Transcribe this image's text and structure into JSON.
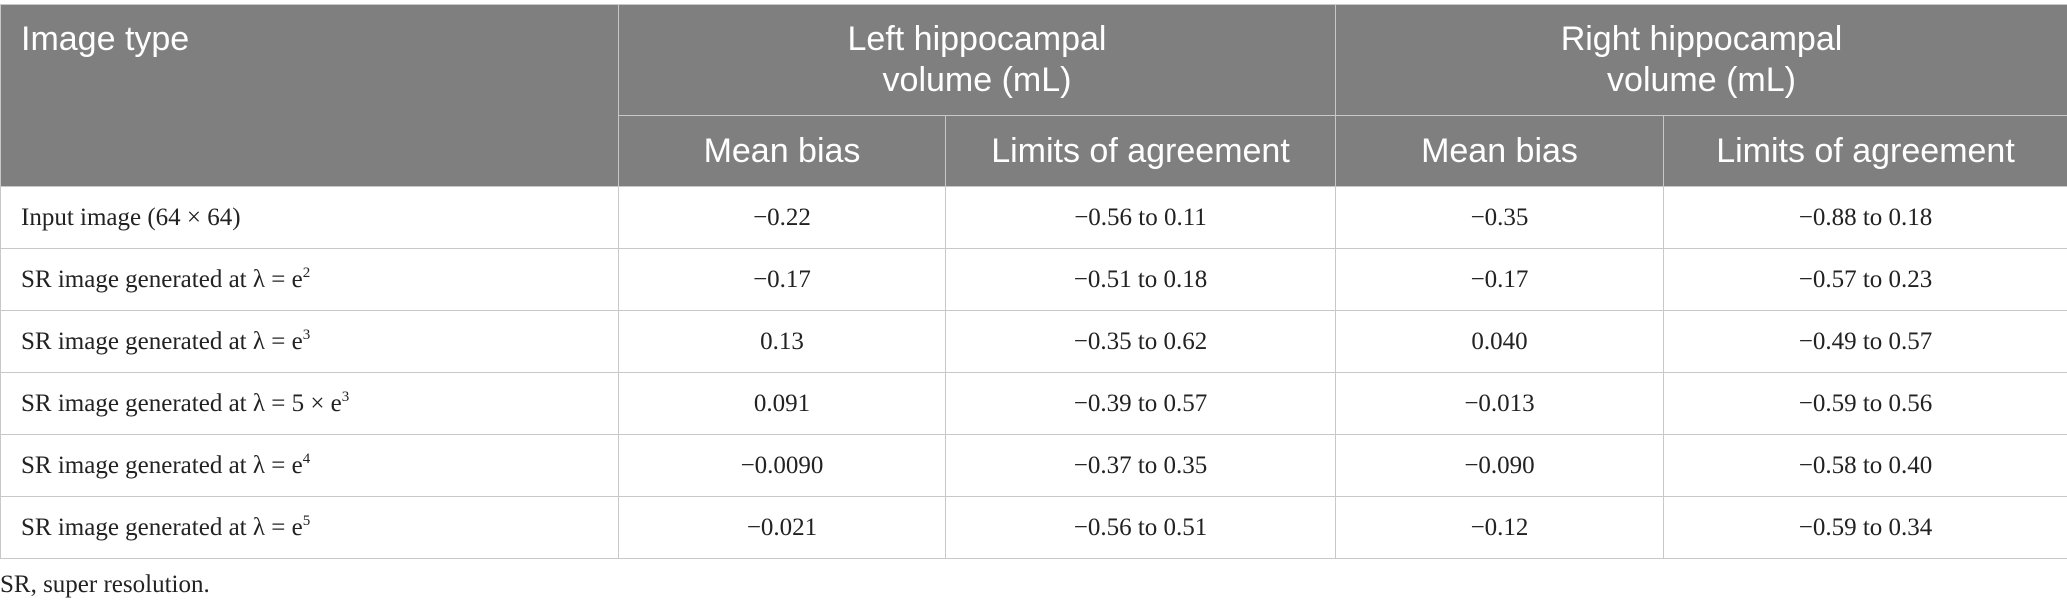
{
  "table": {
    "header": {
      "first": "Image type",
      "groups": [
        "Left hippocampal volume (mL)",
        "Right hippocampal volume (mL)"
      ],
      "subheaders": [
        "Mean bias",
        "Limits of agreement",
        "Mean bias",
        "Limits of agreement"
      ]
    },
    "rows": [
      {
        "label": {
          "text": "Input image (64 × 64)"
        },
        "cells": [
          "−0.22",
          "−0.56 to 0.11",
          "−0.35",
          "−0.88 to 0.18"
        ]
      },
      {
        "label": {
          "text": "SR image generated at λ = e",
          "sup": "2"
        },
        "cells": [
          "−0.17",
          "−0.51 to 0.18",
          "−0.17",
          "−0.57 to 0.23"
        ]
      },
      {
        "label": {
          "text": "SR image generated at λ = e",
          "sup": "3"
        },
        "cells": [
          "0.13",
          "−0.35 to 0.62",
          "0.040",
          "−0.49 to 0.57"
        ]
      },
      {
        "label": {
          "text": "SR image generated at λ = 5 × e",
          "sup": "3"
        },
        "cells": [
          "0.091",
          "−0.39 to 0.57",
          "−0.013",
          "−0.59 to 0.56"
        ]
      },
      {
        "label": {
          "text": "SR image generated at λ = e",
          "sup": "4"
        },
        "cells": [
          "−0.0090",
          "−0.37 to 0.35",
          "−0.090",
          "−0.58 to 0.40"
        ]
      },
      {
        "label": {
          "text": "SR image generated at λ = e",
          "sup": "5"
        },
        "cells": [
          "−0.021",
          "−0.56 to 0.51",
          "−0.12",
          "−0.59 to 0.34"
        ]
      }
    ],
    "footnote": "SR, super resolution."
  }
}
